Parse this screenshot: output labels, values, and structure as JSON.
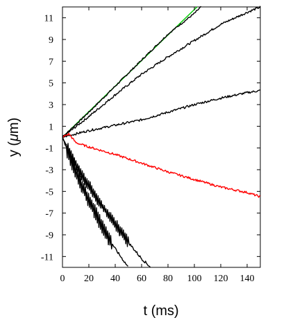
{
  "chart_data": {
    "type": "line",
    "xlabel": "t (ms)",
    "ylabel_prefix": "y (",
    "ylabel_mu": "μ",
    "ylabel_suffix": "m)",
    "xlim": [
      0,
      150
    ],
    "ylim": [
      -12,
      12
    ],
    "x_ticks": [
      0,
      20,
      40,
      60,
      80,
      100,
      120,
      140
    ],
    "y_ticks": [
      11,
      9,
      7,
      5,
      3,
      1,
      -1,
      -3,
      -5,
      -7,
      -9,
      -11
    ],
    "grid": false,
    "legend": "none",
    "series": [
      {
        "color": "#00cc00",
        "noise": 0,
        "jitter": 0,
        "points": [
          [
            0,
            0
          ],
          [
            102,
            12
          ]
        ]
      },
      {
        "color": "#000000",
        "noise": 0.08,
        "jitter": 0,
        "points": [
          [
            0,
            0
          ],
          [
            20,
            2.3
          ],
          [
            40,
            4.7
          ],
          [
            60,
            7.1
          ],
          [
            80,
            9.5
          ],
          [
            100,
            11.4
          ],
          [
            105,
            12
          ]
        ]
      },
      {
        "color": "#000000",
        "noise": 0.1,
        "jitter": 0,
        "points": [
          [
            0,
            0
          ],
          [
            20,
            1.9
          ],
          [
            40,
            3.9
          ],
          [
            60,
            5.8
          ],
          [
            80,
            7.4
          ],
          [
            100,
            8.9
          ],
          [
            120,
            10.4
          ],
          [
            140,
            11.5
          ],
          [
            150,
            12
          ]
        ]
      },
      {
        "color": "#000000",
        "noise": 0.1,
        "jitter": 0,
        "points": [
          [
            0,
            0
          ],
          [
            10,
            0.3
          ],
          [
            20,
            0.6
          ],
          [
            40,
            1.1
          ],
          [
            60,
            1.6
          ],
          [
            80,
            2.3
          ],
          [
            100,
            3.0
          ],
          [
            120,
            3.6
          ],
          [
            140,
            4.1
          ],
          [
            150,
            4.3
          ]
        ]
      },
      {
        "color": "#ff0000",
        "noise": 0.1,
        "jitter": 0,
        "points": [
          [
            0,
            0
          ],
          [
            5,
            0.3
          ],
          [
            10,
            -0.5
          ],
          [
            20,
            -0.9
          ],
          [
            40,
            -1.6
          ],
          [
            60,
            -2.4
          ],
          [
            80,
            -3.2
          ],
          [
            100,
            -3.9
          ],
          [
            120,
            -4.6
          ],
          [
            140,
            -5.1
          ],
          [
            150,
            -5.5
          ]
        ]
      },
      {
        "color": "#000000",
        "noise": 0.12,
        "jitter": 0.5,
        "points": [
          [
            0,
            0
          ],
          [
            10,
            -2.5
          ],
          [
            20,
            -4.5
          ],
          [
            30,
            -6.3
          ],
          [
            40,
            -8.0
          ],
          [
            50,
            -9.7
          ],
          [
            60,
            -11.2
          ],
          [
            67,
            -12
          ]
        ]
      },
      {
        "color": "#000000",
        "noise": 0.12,
        "jitter": 0.7,
        "points": [
          [
            0,
            0
          ],
          [
            10,
            -3.2
          ],
          [
            20,
            -5.8
          ],
          [
            30,
            -8.2
          ],
          [
            40,
            -10.3
          ],
          [
            50,
            -12
          ]
        ]
      }
    ]
  }
}
